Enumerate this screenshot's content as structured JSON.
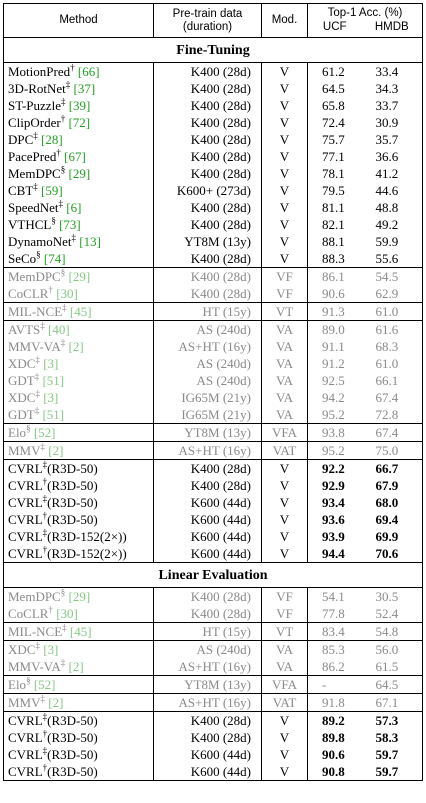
{
  "header": {
    "method": "Method",
    "pretrain": [
      "Pre-train data",
      "(duration)"
    ],
    "modality": "Mod.",
    "accuracy": "Top-1 Acc. (%)",
    "ucf": "UCF",
    "hmdb": "HMDB"
  },
  "sections": [
    {
      "title": "Fine-Tuning",
      "groups": [
        {
          "style": "normal",
          "rows": [
            {
              "name": "MotionPred",
              "mark": "†",
              "cite": "[66]",
              "data": "K400 (28d)",
              "mod": "V",
              "ucf": "61.2",
              "hmdb": "33.4"
            },
            {
              "name": "3D-RotNet",
              "mark": "‡",
              "cite": "[37]",
              "data": "K400 (28d)",
              "mod": "V",
              "ucf": "64.5",
              "hmdb": "34.3"
            },
            {
              "name": "ST-Puzzle",
              "mark": "‡",
              "cite": "[39]",
              "data": "K400 (28d)",
              "mod": "V",
              "ucf": "65.8",
              "hmdb": "33.7"
            },
            {
              "name": "ClipOrder",
              "mark": "†",
              "cite": "[72]",
              "data": "K400 (28d)",
              "mod": "V",
              "ucf": "72.4",
              "hmdb": "30.9"
            },
            {
              "name": "DPC",
              "mark": "‡",
              "cite": "[28]",
              "data": "K400 (28d)",
              "mod": "V",
              "ucf": "75.7",
              "hmdb": "35.7"
            },
            {
              "name": "PacePred",
              "mark": "†",
              "cite": "[67]",
              "data": "K400 (28d)",
              "mod": "V",
              "ucf": "77.1",
              "hmdb": "36.6"
            },
            {
              "name": "MemDPC",
              "mark": "§",
              "cite": "[29]",
              "data": "K400 (28d)",
              "mod": "V",
              "ucf": "78.1",
              "hmdb": "41.2"
            },
            {
              "name": "CBT",
              "mark": "‡",
              "cite": "[59]",
              "data": "K600+ (273d)",
              "mod": "V",
              "ucf": "79.5",
              "hmdb": "44.6"
            },
            {
              "name": "SpeedNet",
              "mark": "‡",
              "cite": "[6]",
              "data": "K400 (28d)",
              "mod": "V",
              "ucf": "81.1",
              "hmdb": "48.8"
            },
            {
              "name": "VTHCL",
              "mark": "§",
              "cite": "[73]",
              "data": "K400 (28d)",
              "mod": "V",
              "ucf": "82.1",
              "hmdb": "49.2"
            },
            {
              "name": "DynamoNet",
              "mark": "‡",
              "cite": "[13]",
              "data": "YT8M (13y)",
              "mod": "V",
              "ucf": "88.1",
              "hmdb": "59.9"
            },
            {
              "name": "SeCo",
              "mark": "§",
              "cite": "[74]",
              "data": "K400 (28d)",
              "mod": "V",
              "ucf": "88.3",
              "hmdb": "55.6"
            }
          ]
        },
        {
          "style": "gray",
          "rows": [
            {
              "name": "MemDPC",
              "mark": "§",
              "cite": "[29]",
              "data": "K400 (28d)",
              "mod": "VF",
              "ucf": "86.1",
              "hmdb": "54.5"
            },
            {
              "name": "CoCLR",
              "mark": "†",
              "cite": "[30]",
              "data": "K400 (28d)",
              "mod": "VF",
              "ucf": "90.6",
              "hmdb": "62.9"
            }
          ]
        },
        {
          "style": "gray",
          "rows": [
            {
              "name": "MIL-NCE",
              "mark": "‡",
              "cite": "[45]",
              "data": "HT (15y)",
              "mod": "VT",
              "ucf": "91.3",
              "hmdb": "61.0"
            }
          ]
        },
        {
          "style": "gray",
          "rows": [
            {
              "name": "AVTS",
              "mark": "‡",
              "cite": "[40]",
              "data": "AS (240d)",
              "mod": "VA",
              "ucf": "89.0",
              "hmdb": "61.6"
            },
            {
              "name": "MMV-VA",
              "mark": "‡",
              "cite": "[2]",
              "data": "AS+HT (16y)",
              "mod": "VA",
              "ucf": "91.1",
              "hmdb": "68.3"
            },
            {
              "name": "XDC",
              "mark": "‡",
              "cite": "[3]",
              "data": "AS (240d)",
              "mod": "VA",
              "ucf": "91.2",
              "hmdb": "61.0"
            },
            {
              "name": "GDT",
              "mark": "‡",
              "cite": "[51]",
              "data": "AS (240d)",
              "mod": "VA",
              "ucf": "92.5",
              "hmdb": "66.1"
            },
            {
              "name": "XDC",
              "mark": "‡",
              "cite": "[3]",
              "data": "IG65M (21y)",
              "mod": "VA",
              "ucf": "94.2",
              "hmdb": "67.4"
            },
            {
              "name": "GDT",
              "mark": "‡",
              "cite": "[51]",
              "data": "IG65M (21y)",
              "mod": "VA",
              "ucf": "95.2",
              "hmdb": "72.8"
            }
          ]
        },
        {
          "style": "gray",
          "rows": [
            {
              "name": "Elo",
              "mark": "§",
              "cite": "[52]",
              "data": "YT8M (13y)",
              "mod": "VFA",
              "ucf": "93.8",
              "hmdb": "67.4"
            }
          ]
        },
        {
          "style": "gray",
          "rows": [
            {
              "name": "MMV",
              "mark": "‡",
              "cite": "[2]",
              "data": "AS+HT (16y)",
              "mod": "VAT",
              "ucf": "95.2",
              "hmdb": "75.0"
            }
          ]
        },
        {
          "style": "bold",
          "rows": [
            {
              "name": "CVRL",
              "mark": "‡",
              "suffix": "(R3D-50)",
              "data": "K400 (28d)",
              "mod": "V",
              "ucf": "92.2",
              "hmdb": "66.7"
            },
            {
              "name": "CVRL",
              "mark": "†",
              "suffix": "(R3D-50)",
              "data": "K400 (28d)",
              "mod": "V",
              "ucf": "92.9",
              "hmdb": "67.9"
            },
            {
              "name": "CVRL",
              "mark": "‡",
              "suffix": "(R3D-50)",
              "data": "K600 (44d)",
              "mod": "V",
              "ucf": "93.4",
              "hmdb": "68.0"
            },
            {
              "name": "CVRL",
              "mark": "†",
              "suffix": "(R3D-50)",
              "data": "K600 (44d)",
              "mod": "V",
              "ucf": "93.6",
              "hmdb": "69.4"
            },
            {
              "name": "CVRL",
              "mark": "‡",
              "suffix": "(R3D-152(2×))",
              "data": "K600 (44d)",
              "mod": "V",
              "ucf": "93.9",
              "hmdb": "69.9"
            },
            {
              "name": "CVRL",
              "mark": "†",
              "suffix": "(R3D-152(2×))",
              "data": "K600 (44d)",
              "mod": "V",
              "ucf": "94.4",
              "hmdb": "70.6"
            }
          ]
        }
      ]
    },
    {
      "title": "Linear Evaluation",
      "groups": [
        {
          "style": "gray",
          "rows": [
            {
              "name": "MemDPC",
              "mark": "§",
              "cite": "[29]",
              "data": "K400 (28d)",
              "mod": "VF",
              "ucf": "54.1",
              "hmdb": "30.5"
            },
            {
              "name": "CoCLR",
              "mark": "†",
              "cite": "[30]",
              "data": "K400 (28d)",
              "mod": "VF",
              "ucf": "77.8",
              "hmdb": "52.4"
            }
          ]
        },
        {
          "style": "gray",
          "rows": [
            {
              "name": "MIL-NCE",
              "mark": "‡",
              "cite": "[45]",
              "data": "HT (15y)",
              "mod": "VT",
              "ucf": "83.4",
              "hmdb": "54.8"
            }
          ]
        },
        {
          "style": "gray",
          "rows": [
            {
              "name": "XDC",
              "mark": "‡",
              "cite": "[3]",
              "data": "AS (240d)",
              "mod": "VA",
              "ucf": "85.3",
              "hmdb": "56.0"
            },
            {
              "name": "MMV-VA",
              "mark": "‡",
              "cite": "[2]",
              "data": "AS+HT (16y)",
              "mod": "VA",
              "ucf": "86.2",
              "hmdb": "61.5"
            }
          ]
        },
        {
          "style": "gray",
          "rows": [
            {
              "name": "Elo",
              "mark": "§",
              "cite": "[52]",
              "data": "YT8M (13y)",
              "mod": "VFA",
              "ucf": "-",
              "hmdb": "64.5"
            }
          ]
        },
        {
          "style": "gray",
          "rows": [
            {
              "name": "MMV",
              "mark": "‡",
              "cite": "[2]",
              "data": "AS+HT (16y)",
              "mod": "VAT",
              "ucf": "91.8",
              "hmdb": "67.1"
            }
          ]
        },
        {
          "style": "bold",
          "rows": [
            {
              "name": "CVRL",
              "mark": "‡",
              "suffix": "(R3D-50)",
              "data": "K400 (28d)",
              "mod": "V",
              "ucf": "89.2",
              "hmdb": "57.3"
            },
            {
              "name": "CVRL",
              "mark": "†",
              "suffix": "(R3D-50)",
              "data": "K400 (28d)",
              "mod": "V",
              "ucf": "89.8",
              "hmdb": "58.3"
            },
            {
              "name": "CVRL",
              "mark": "‡",
              "suffix": "(R3D-50)",
              "data": "K600 (44d)",
              "mod": "V",
              "ucf": "90.6",
              "hmdb": "59.7"
            },
            {
              "name": "CVRL",
              "mark": "†",
              "suffix": "(R3D-50)",
              "data": "K600 (44d)",
              "mod": "V",
              "ucf": "90.8",
              "hmdb": "59.7"
            }
          ]
        }
      ]
    }
  ]
}
